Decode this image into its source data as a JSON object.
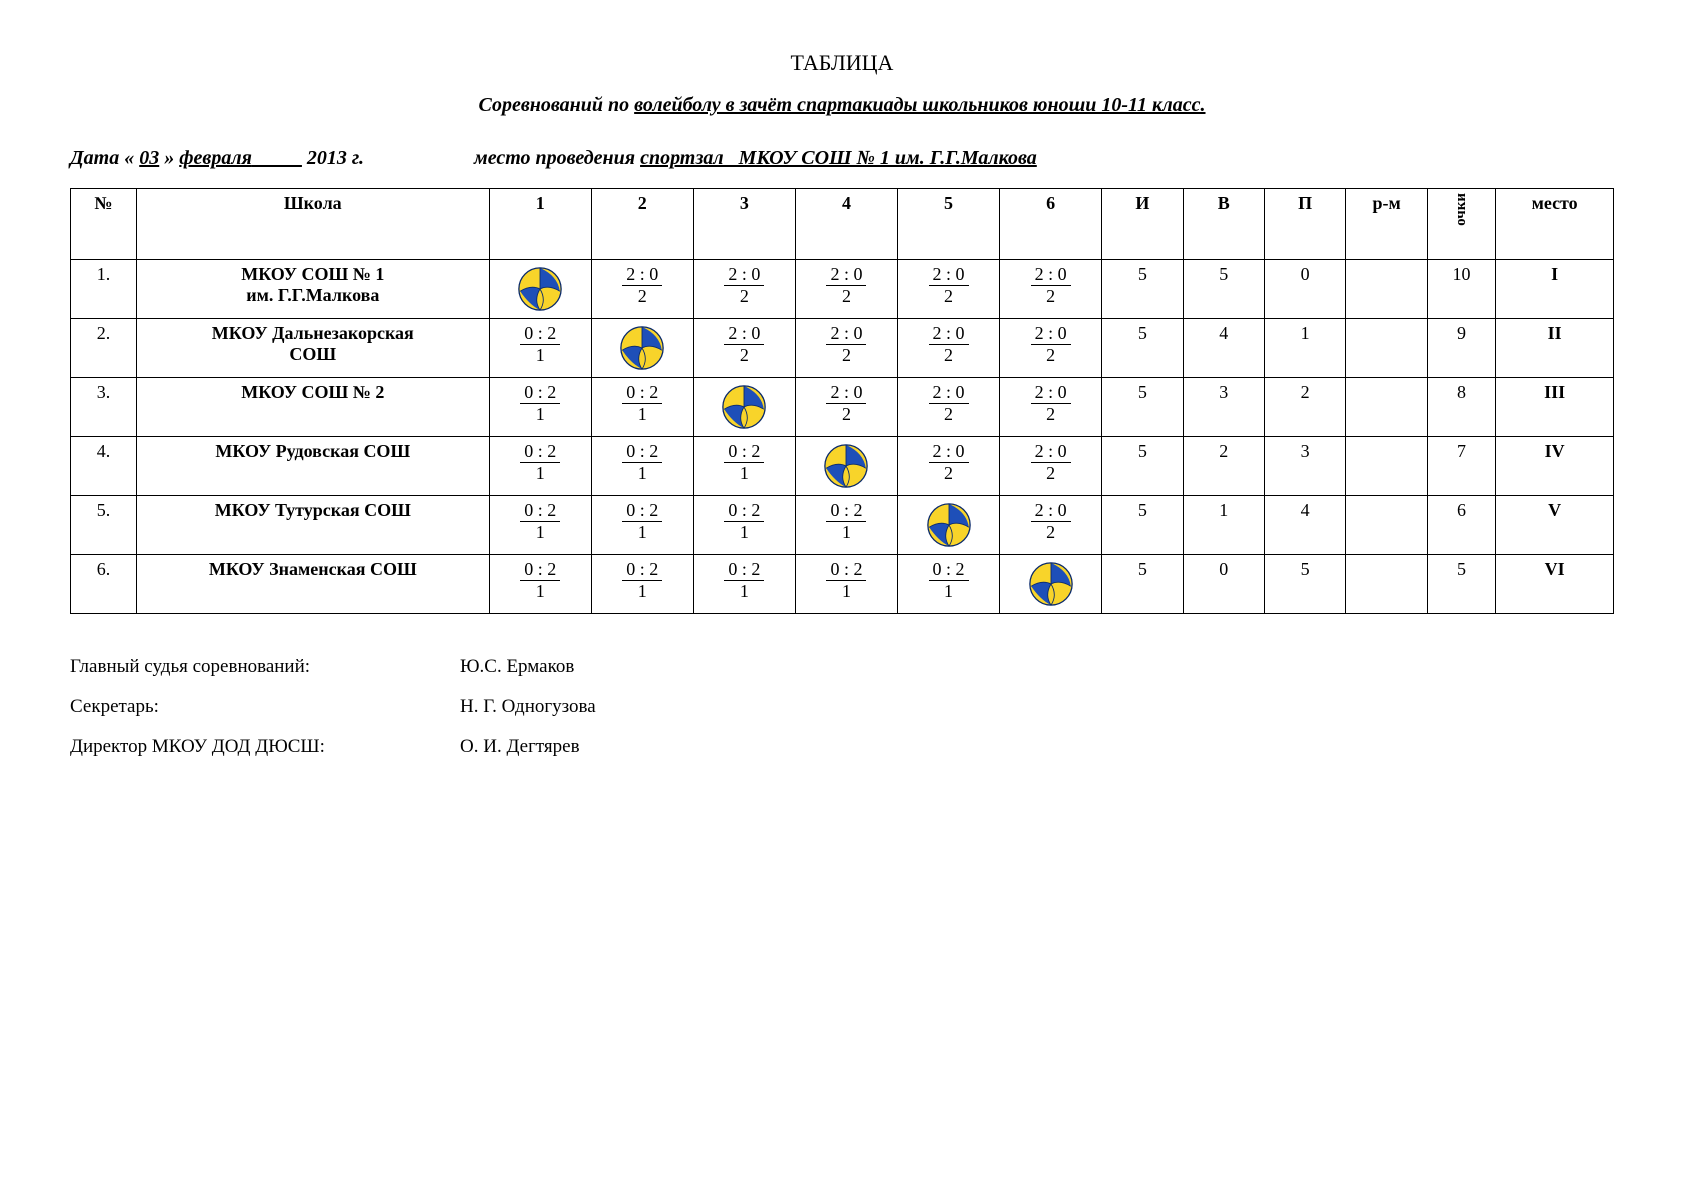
{
  "title": "ТАБЛИЦА",
  "subtitle_prefix": "Соревнований по ",
  "subtitle_underlined": "волейболу в зачёт спартакиады школьников  юноши  10-11 класс.",
  "info_line": {
    "date_prefix": "Дата « ",
    "day": "03",
    "date_mid": " »  ",
    "month": "февраля",
    "month_pad": "          ",
    "year": " 2013 г.",
    "gap": "                      ",
    "venue_label": "место проведения ",
    "venue": "спортзал_  МКОУ СОШ № 1 им. Г.Г.Малкова"
  },
  "headers": {
    "num": "№",
    "school": "Школа",
    "g1": "1",
    "g2": "2",
    "g3": "3",
    "g4": "4",
    "g5": "5",
    "g6": "6",
    "played": "И",
    "won": "В",
    "lost": "П",
    "diff": "р-м",
    "points": "очки",
    "place": "место"
  },
  "rows": [
    {
      "num": "1.",
      "school": "МКОУ СОШ № 1\nим. Г.Г.Малкова",
      "cells": [
        "BALL",
        {
          "top": "2 : 0",
          "bot": "2"
        },
        {
          "top": "2 : 0",
          "bot": "2"
        },
        {
          "top": "2 : 0",
          "bot": "2"
        },
        {
          "top": "2 : 0",
          "bot": "2"
        },
        {
          "top": "2 : 0",
          "bot": "2"
        }
      ],
      "played": "5",
      "won": "5",
      "lost": "0",
      "diff": "",
      "points": "10",
      "place": "I"
    },
    {
      "num": "2.",
      "school": "МКОУ Дальнезакорская\nСОШ",
      "cells": [
        {
          "top": "0 : 2",
          "bot": "1"
        },
        "BALL",
        {
          "top": "2 : 0",
          "bot": "2"
        },
        {
          "top": "2 : 0",
          "bot": "2"
        },
        {
          "top": "2 : 0",
          "bot": "2"
        },
        {
          "top": "2 : 0",
          "bot": "2"
        }
      ],
      "played": "5",
      "won": "4",
      "lost": "1",
      "diff": "",
      "points": "9",
      "place": "II"
    },
    {
      "num": "3.",
      "school": "МКОУ СОШ № 2",
      "cells": [
        {
          "top": "0 : 2",
          "bot": "1"
        },
        {
          "top": "0 : 2",
          "bot": "1"
        },
        "BALL",
        {
          "top": "2 : 0",
          "bot": "2"
        },
        {
          "top": "2 : 0",
          "bot": "2"
        },
        {
          "top": "2 : 0",
          "bot": "2"
        }
      ],
      "played": "5",
      "won": "3",
      "lost": "2",
      "diff": "",
      "points": "8",
      "place": "III"
    },
    {
      "num": "4.",
      "school": "МКОУ Рудовская СОШ",
      "cells": [
        {
          "top": "0 : 2",
          "bot": "1"
        },
        {
          "top": "0 : 2",
          "bot": "1"
        },
        {
          "top": "0 : 2",
          "bot": "1"
        },
        "BALL",
        {
          "top": "2 : 0",
          "bot": "2"
        },
        {
          "top": "2 : 0",
          "bot": "2"
        }
      ],
      "played": "5",
      "won": "2",
      "lost": "3",
      "diff": "",
      "points": "7",
      "place": "IV"
    },
    {
      "num": "5.",
      "school": "МКОУ Тутурская СОШ",
      "cells": [
        {
          "top": "0 : 2",
          "bot": "1"
        },
        {
          "top": "0 : 2",
          "bot": "1"
        },
        {
          "top": "0 : 2",
          "bot": "1"
        },
        {
          "top": "0 : 2",
          "bot": "1"
        },
        "BALL",
        {
          "top": "2 : 0",
          "bot": "2"
        }
      ],
      "played": "5",
      "won": "1",
      "lost": "4",
      "diff": "",
      "points": "6",
      "place": "V"
    },
    {
      "num": "6.",
      "school": "МКОУ Знаменская СОШ",
      "cells": [
        {
          "top": "0 : 2",
          "bot": "1"
        },
        {
          "top": "0 : 2",
          "bot": "1"
        },
        {
          "top": "0 : 2",
          "bot": "1"
        },
        {
          "top": "0 : 2",
          "bot": "1"
        },
        {
          "top": "0 : 2",
          "bot": "1"
        },
        "BALL"
      ],
      "played": "5",
      "won": "0",
      "lost": "5",
      "diff": "",
      "points": "5",
      "place": "VI"
    }
  ],
  "officials": [
    {
      "role": "Главный судья соревнований:",
      "name": "Ю.С. Ермаков"
    },
    {
      "role": "Секретарь:",
      "name": "Н. Г. Одногузова"
    },
    {
      "role": "Директор МКОУ ДОД ДЮСШ:",
      "name": "О. И. Дегтярев"
    }
  ],
  "style": {
    "background_color": "#ffffff",
    "text_color": "#000000",
    "border_color": "#000000",
    "font_family": "Times New Roman",
    "title_fontsize": 22,
    "subtitle_fontsize": 20,
    "body_fontsize": 18,
    "volleyball_colors": {
      "blue": "#1e4fb8",
      "yellow": "#f8d42a",
      "outline": "#0a2a6b"
    }
  }
}
